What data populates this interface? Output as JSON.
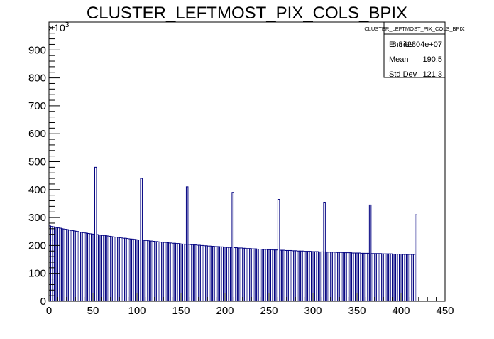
{
  "chart_data": {
    "type": "histogram",
    "title": "CLUSTER_LEFTMOST_PIX_COLS_BPIX",
    "y_multiplier": "×10",
    "y_multiplier_exponent": "3",
    "color": "#000080",
    "xlim": [
      0,
      450
    ],
    "xticks": [
      0,
      50,
      100,
      150,
      200,
      250,
      300,
      350,
      400,
      450
    ],
    "ylim": [
      0,
      1000
    ],
    "yticks": [
      0,
      100,
      200,
      300,
      400,
      500,
      600,
      700,
      800,
      900
    ],
    "stats": {
      "title": "CLUSTER_LEFTMOST_PIX_COLS_BPIX",
      "rows": [
        [
          "Entries",
          "8.842804e+07"
        ],
        [
          "Mean",
          "190.5"
        ],
        [
          "Std Dev",
          "121.3"
        ]
      ]
    },
    "bins": [
      0,
      2,
      4,
      6,
      8,
      10,
      12,
      14,
      16,
      18,
      20,
      22,
      24,
      26,
      28,
      30,
      32,
      34,
      36,
      38,
      40,
      42,
      44,
      46,
      48,
      50,
      52,
      54,
      56,
      58,
      60,
      62,
      64,
      66,
      68,
      70,
      72,
      74,
      76,
      78,
      80,
      82,
      84,
      86,
      88,
      90,
      92,
      94,
      96,
      98,
      100,
      102,
      104,
      106,
      108,
      110,
      112,
      114,
      116,
      118,
      120,
      122,
      124,
      126,
      128,
      130,
      132,
      134,
      136,
      138,
      140,
      142,
      144,
      146,
      148,
      150,
      152,
      154,
      156,
      158,
      160,
      162,
      164,
      166,
      168,
      170,
      172,
      174,
      176,
      178,
      180,
      182,
      184,
      186,
      188,
      190,
      192,
      194,
      196,
      198,
      200,
      202,
      204,
      206,
      208,
      210,
      212,
      214,
      216,
      218,
      220,
      222,
      224,
      226,
      228,
      230,
      232,
      234,
      236,
      238,
      240,
      242,
      244,
      246,
      248,
      250,
      252,
      254,
      256,
      258,
      260,
      262,
      264,
      266,
      268,
      270,
      272,
      274,
      276,
      278,
      280,
      282,
      284,
      286,
      288,
      290,
      292,
      294,
      296,
      298,
      300,
      302,
      304,
      306,
      308,
      310,
      312,
      314,
      316,
      318,
      320,
      322,
      324,
      326,
      328,
      330,
      332,
      334,
      336,
      338,
      340,
      342,
      344,
      346,
      348,
      350,
      352,
      354,
      356,
      358,
      360,
      362,
      364,
      366,
      368,
      370,
      372,
      374,
      376,
      378,
      380,
      382,
      384,
      386,
      388,
      390,
      392,
      394,
      396,
      398,
      400,
      402,
      404,
      406,
      408,
      410,
      412,
      414,
      416,
      418
    ],
    "values": [
      270,
      268,
      267,
      266,
      264,
      263,
      262,
      260,
      259,
      258,
      257,
      255,
      254,
      253,
      252,
      251,
      250,
      248,
      247,
      246,
      245,
      244,
      243,
      242,
      241,
      240,
      480,
      239,
      238,
      237,
      236,
      236,
      235,
      234,
      233,
      232,
      231,
      230,
      230,
      229,
      228,
      227,
      226,
      226,
      225,
      224,
      223,
      223,
      222,
      221,
      220,
      220,
      440,
      219,
      218,
      218,
      217,
      216,
      216,
      215,
      214,
      214,
      213,
      212,
      212,
      211,
      211,
      210,
      209,
      209,
      208,
      208,
      207,
      207,
      206,
      205,
      205,
      204,
      410,
      204,
      203,
      203,
      202,
      202,
      201,
      201,
      200,
      200,
      199,
      199,
      198,
      198,
      197,
      197,
      196,
      196,
      196,
      195,
      195,
      194,
      194,
      193,
      193,
      193,
      390,
      192,
      192,
      191,
      191,
      191,
      190,
      190,
      189,
      189,
      189,
      188,
      188,
      188,
      187,
      187,
      187,
      186,
      186,
      186,
      185,
      185,
      185,
      184,
      184,
      184,
      365,
      183,
      183,
      183,
      182,
      182,
      182,
      182,
      181,
      181,
      181,
      180,
      180,
      180,
      180,
      179,
      179,
      179,
      179,
      178,
      178,
      178,
      178,
      177,
      177,
      177,
      355,
      177,
      176,
      176,
      176,
      176,
      176,
      175,
      175,
      175,
      175,
      174,
      174,
      174,
      174,
      174,
      173,
      173,
      173,
      173,
      173,
      172,
      172,
      172,
      172,
      172,
      345,
      171,
      171,
      171,
      171,
      171,
      171,
      170,
      170,
      170,
      170,
      170,
      170,
      169,
      169,
      169,
      169,
      169,
      169,
      168,
      168,
      168,
      168,
      168,
      168,
      168,
      310
    ]
  }
}
